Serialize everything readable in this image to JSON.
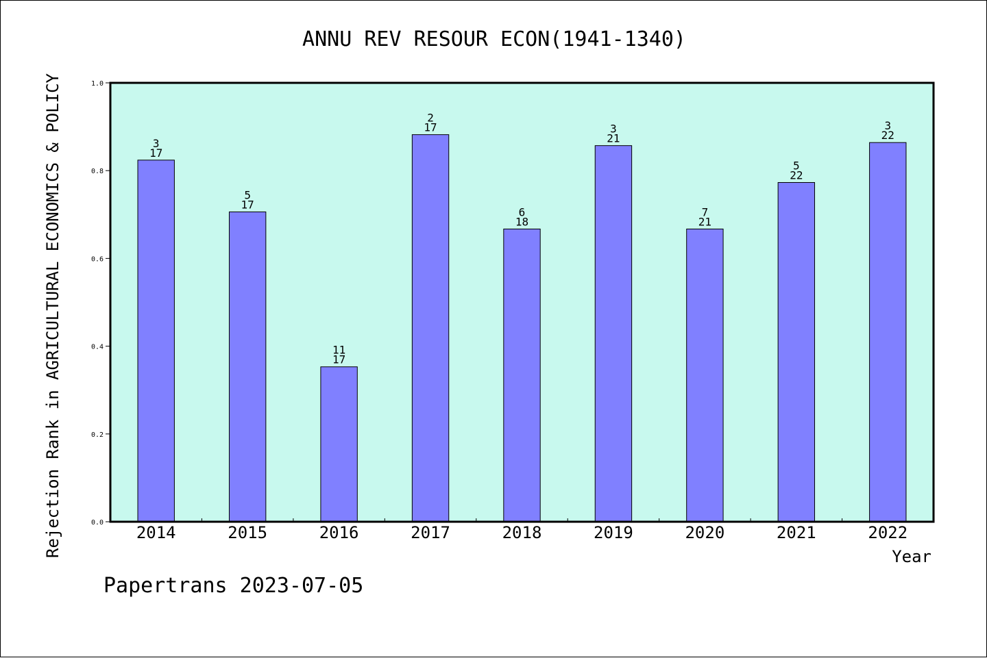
{
  "chart_data": {
    "type": "bar",
    "title": "ANNU REV RESOUR ECON(1941-1340)",
    "ylabel": "Rejection Rank in AGRICULTURAL ECONOMICS & POLICY",
    "xlabel": "Year",
    "footer": "Papertrans 2023-07-05",
    "categories": [
      "2014",
      "2015",
      "2016",
      "2017",
      "2018",
      "2019",
      "2020",
      "2021",
      "2022"
    ],
    "values": [
      0.824,
      0.706,
      0.353,
      0.882,
      0.667,
      0.857,
      0.667,
      0.773,
      0.864
    ],
    "rank_labels": [
      "3",
      "5",
      "11",
      "2",
      "6",
      "3",
      "7",
      "5",
      "3"
    ],
    "total_labels": [
      "17",
      "17",
      "17",
      "17",
      "18",
      "21",
      "21",
      "22",
      "22"
    ],
    "ylim": [
      0,
      1.0
    ],
    "yticks": [
      "0.0",
      "0.2",
      "0.4",
      "0.6",
      "0.8",
      "1.0"
    ],
    "grid": false,
    "colors": {
      "plot_background": "#c8f9ee",
      "bar_fill": "#8080ff",
      "bar_stroke": "#000000"
    }
  }
}
